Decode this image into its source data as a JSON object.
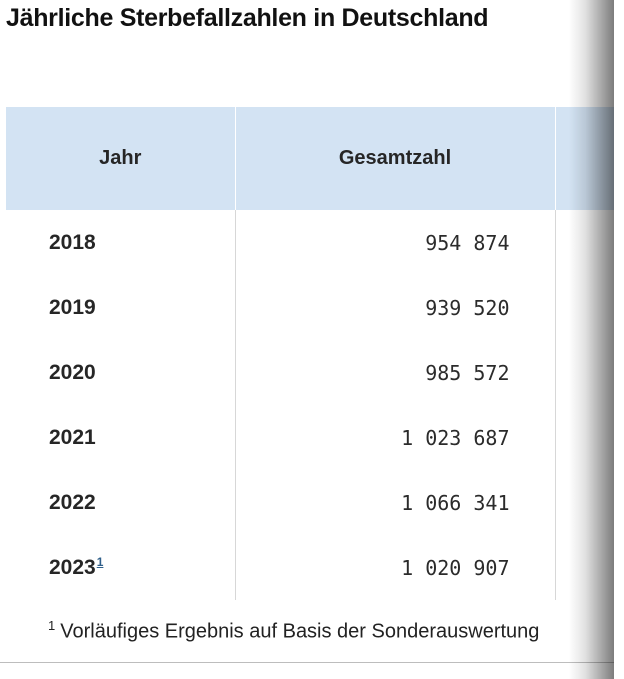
{
  "title": "Jährliche Sterbefallzahlen in Deutschland",
  "table": {
    "headers": [
      "Jahr",
      "Gesamtzahl"
    ],
    "rows": [
      {
        "year": "2018",
        "note": "",
        "total": "954 874"
      },
      {
        "year": "2019",
        "note": "",
        "total": "939 520"
      },
      {
        "year": "2020",
        "note": "",
        "total": "985 572"
      },
      {
        "year": "2021",
        "note": "",
        "total": "1 023 687"
      },
      {
        "year": "2022",
        "note": "",
        "total": "1 066 341"
      },
      {
        "year": "2023",
        "note": "1",
        "total": "1 020 907"
      }
    ]
  },
  "footnote": {
    "marker": "1",
    "text": "Vorläufiges Ergebnis auf Basis der Sonderauswertung"
  },
  "colors": {
    "header_bg": "#d3e3f3",
    "footnote_link": "#2f5f8a"
  }
}
